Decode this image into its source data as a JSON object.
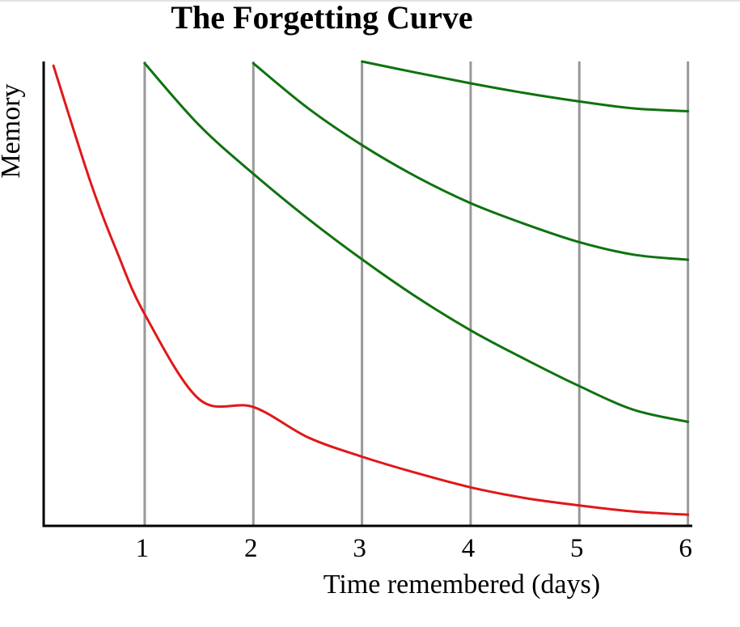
{
  "chart_data": {
    "type": "line",
    "title": "The Forgetting Curve",
    "xlabel": "Time remembered (days)",
    "ylabel": "Memory",
    "xlim": [
      0.07,
      6.04
    ],
    "ylim": [
      0,
      100
    ],
    "x_ticks": [
      1,
      2,
      3,
      4,
      5,
      6
    ],
    "x_tick_labels": [
      "1",
      "2",
      "3",
      "4",
      "5",
      "6"
    ],
    "grid": "vertical",
    "colors": {
      "forgetting": "#e01818",
      "review": "#0f720f",
      "grid": "#999999",
      "axis": "#000000"
    },
    "series": [
      {
        "color": "#e01818",
        "points": [
          [
            0.16,
            99.1
          ],
          [
            0.5,
            74.1
          ],
          [
            0.75,
            58.7
          ],
          [
            1.0,
            45.6
          ],
          [
            1.5,
            27.3
          ],
          [
            2.0,
            25.6
          ],
          [
            2.5,
            19.1
          ],
          [
            3.0,
            14.9
          ],
          [
            3.5,
            11.4
          ],
          [
            4.0,
            8.3
          ],
          [
            4.5,
            6.0
          ],
          [
            5.0,
            4.4
          ],
          [
            5.5,
            3.1
          ],
          [
            6.0,
            2.4
          ]
        ]
      },
      {
        "color": "#0f720f",
        "points": [
          [
            1.0,
            99.6
          ],
          [
            1.5,
            86.3
          ],
          [
            2.0,
            75.8
          ],
          [
            2.5,
            66.2
          ],
          [
            3.0,
            57.4
          ],
          [
            3.5,
            49.3
          ],
          [
            4.0,
            42.1
          ],
          [
            4.5,
            35.9
          ],
          [
            5.0,
            30.1
          ],
          [
            5.5,
            25.0
          ],
          [
            6.0,
            22.4
          ]
        ]
      },
      {
        "color": "#0f720f",
        "points": [
          [
            2.0,
            99.6
          ],
          [
            2.5,
            90.0
          ],
          [
            3.0,
            82.0
          ],
          [
            3.5,
            75.2
          ],
          [
            4.0,
            69.5
          ],
          [
            4.5,
            65.0
          ],
          [
            5.0,
            61.1
          ],
          [
            5.5,
            58.4
          ],
          [
            6.0,
            57.3
          ]
        ]
      },
      {
        "color": "#0f720f",
        "points": [
          [
            3.0,
            100.0
          ],
          [
            3.5,
            97.6
          ],
          [
            4.0,
            95.3
          ],
          [
            4.5,
            93.2
          ],
          [
            5.0,
            91.4
          ],
          [
            5.5,
            89.9
          ],
          [
            6.0,
            89.3
          ]
        ]
      }
    ]
  }
}
